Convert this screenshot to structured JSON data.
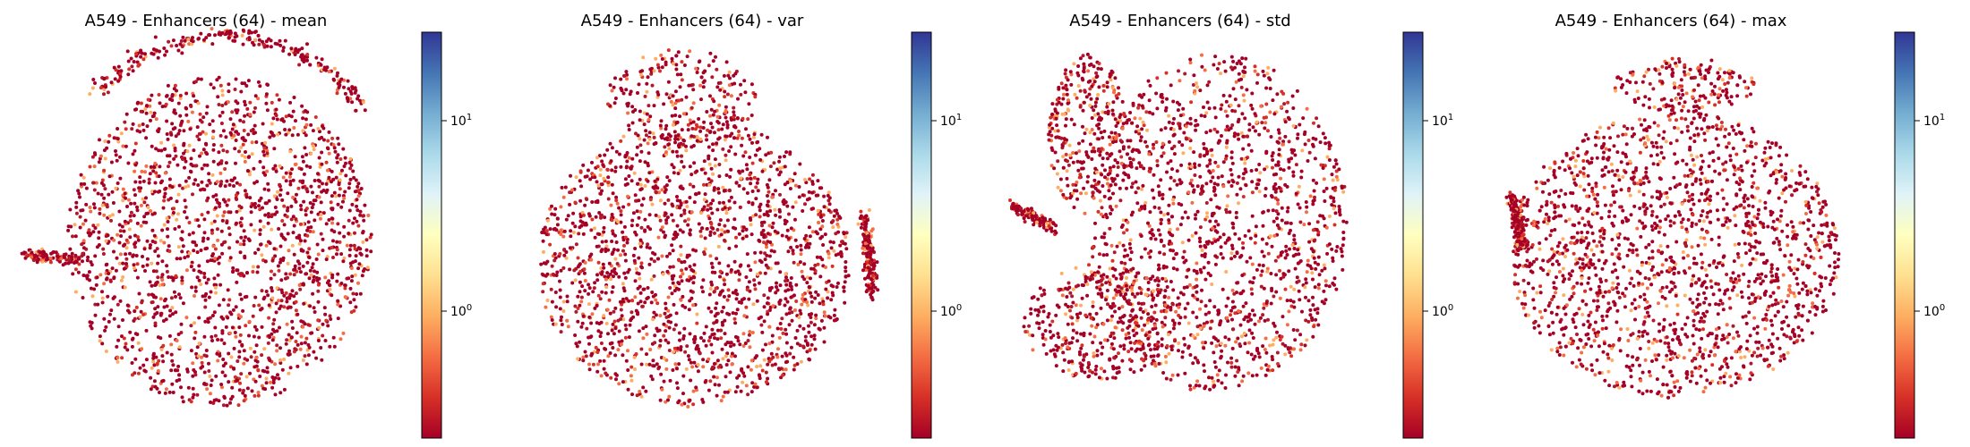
{
  "chart_data": [
    {
      "type": "scatter",
      "title": "A549 - Enhancers (64) - mean",
      "xlabel": "",
      "ylabel": "",
      "axes_visible": false,
      "colormap": "RdYlBu",
      "colorbar": {
        "scale": "log",
        "range": [
          0.25,
          30
        ],
        "ticks": [
          1,
          10
        ],
        "tick_labels": [
          "10^0",
          "10^1"
        ]
      },
      "n_points_approx": 3000,
      "point_color": "#a50026",
      "shape": "mean"
    },
    {
      "type": "scatter",
      "title": "A549 - Enhancers (64) - var",
      "xlabel": "",
      "ylabel": "",
      "axes_visible": false,
      "colormap": "RdYlBu",
      "colorbar": {
        "scale": "log",
        "range": [
          0.25,
          30
        ],
        "ticks": [
          1,
          10
        ],
        "tick_labels": [
          "10^0",
          "10^1"
        ]
      },
      "n_points_approx": 3000,
      "point_color": "#a50026",
      "shape": "var"
    },
    {
      "type": "scatter",
      "title": "A549 - Enhancers (64) - std",
      "xlabel": "",
      "ylabel": "",
      "axes_visible": false,
      "colormap": "RdYlBu",
      "colorbar": {
        "scale": "log",
        "range": [
          0.25,
          30
        ],
        "ticks": [
          1,
          10
        ],
        "tick_labels": [
          "10^0",
          "10^1"
        ]
      },
      "n_points_approx": 3000,
      "point_color": "#a50026",
      "shape": "std"
    },
    {
      "type": "scatter",
      "title": "A549 - Enhancers (64) - max",
      "xlabel": "",
      "ylabel": "",
      "axes_visible": false,
      "colormap": "RdYlBu",
      "colorbar": {
        "scale": "log",
        "range": [
          0.25,
          30
        ],
        "ticks": [
          1,
          10
        ],
        "tick_labels": [
          "10^0",
          "10^1"
        ]
      },
      "n_points_approx": 3000,
      "point_color": "#a50026",
      "shape": "max"
    }
  ]
}
